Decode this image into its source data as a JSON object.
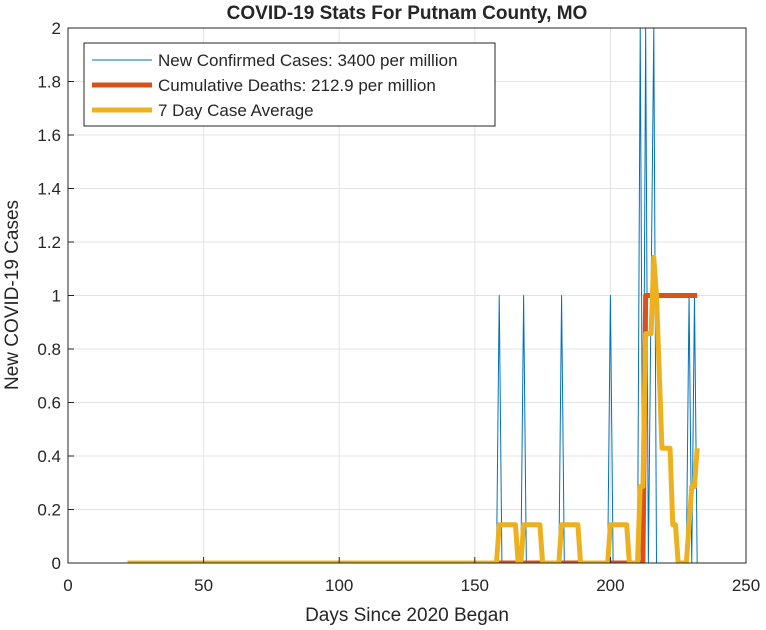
{
  "chart_data": {
    "type": "line",
    "title": "COVID-19 Stats For Putnam County, MO",
    "xlabel": "Days Since 2020 Began",
    "ylabel": "New COVID-19 Cases",
    "xlim": [
      0,
      250
    ],
    "ylim": [
      0,
      2
    ],
    "xticks": [
      "0",
      "50",
      "100",
      "150",
      "200",
      "250"
    ],
    "yticks": [
      "0",
      "0.2",
      "0.4",
      "0.6",
      "0.8",
      "1",
      "1.2",
      "1.4",
      "1.6",
      "1.8",
      "2"
    ],
    "grid": true,
    "legend_position": "top-left",
    "series": [
      {
        "name": "New Confirmed Cases: 3400 per million",
        "color": "#0072BD",
        "style": "thin",
        "points": [
          [
            22,
            0
          ],
          [
            158,
            0
          ],
          [
            159,
            1
          ],
          [
            160,
            0
          ],
          [
            167,
            0
          ],
          [
            168,
            1
          ],
          [
            169,
            0
          ],
          [
            181,
            0
          ],
          [
            182,
            1
          ],
          [
            183,
            0
          ],
          [
            199,
            0
          ],
          [
            200,
            1
          ],
          [
            201,
            0
          ],
          [
            210,
            0
          ],
          [
            211,
            2
          ],
          [
            212,
            0
          ],
          [
            213,
            2
          ],
          [
            214,
            0
          ],
          [
            216,
            2
          ],
          [
            217,
            0
          ],
          [
            218,
            0
          ],
          [
            228,
            0
          ],
          [
            229,
            1
          ],
          [
            230,
            0
          ],
          [
            231,
            1
          ],
          [
            232,
            0
          ]
        ]
      },
      {
        "name": "Cumulative Deaths: 212.9 per million",
        "color": "#D95319",
        "style": "thick",
        "points": [
          [
            22,
            0
          ],
          [
            212,
            0
          ],
          [
            213,
            1
          ],
          [
            232,
            1
          ]
        ]
      },
      {
        "name": "7 Day Case Average",
        "color": "#EDB120",
        "style": "thick",
        "points": [
          [
            22,
            0
          ],
          [
            158,
            0
          ],
          [
            159,
            0.143
          ],
          [
            165,
            0.143
          ],
          [
            166,
            0
          ],
          [
            167,
            0
          ],
          [
            168,
            0.143
          ],
          [
            174,
            0.143
          ],
          [
            175,
            0
          ],
          [
            181,
            0
          ],
          [
            182,
            0.143
          ],
          [
            188,
            0.143
          ],
          [
            189,
            0
          ],
          [
            199,
            0
          ],
          [
            200,
            0.143
          ],
          [
            206,
            0.143
          ],
          [
            207,
            0
          ],
          [
            210,
            0
          ],
          [
            211,
            0.286
          ],
          [
            212,
            0.286
          ],
          [
            213,
            0.857
          ],
          [
            214,
            0.857
          ],
          [
            215,
            0.857
          ],
          [
            216,
            1.143
          ],
          [
            217,
            1.0
          ],
          [
            218,
            0.714
          ],
          [
            219,
            0.429
          ],
          [
            220,
            0.429
          ],
          [
            221,
            0.429
          ],
          [
            222,
            0.429
          ],
          [
            223,
            0.143
          ],
          [
            224,
            0.143
          ],
          [
            225,
            0
          ],
          [
            226,
            0
          ],
          [
            227,
            0
          ],
          [
            228,
            0
          ],
          [
            229,
            0.143
          ],
          [
            230,
            0.286
          ],
          [
            231,
            0.286
          ],
          [
            232,
            0.429
          ]
        ]
      }
    ]
  }
}
